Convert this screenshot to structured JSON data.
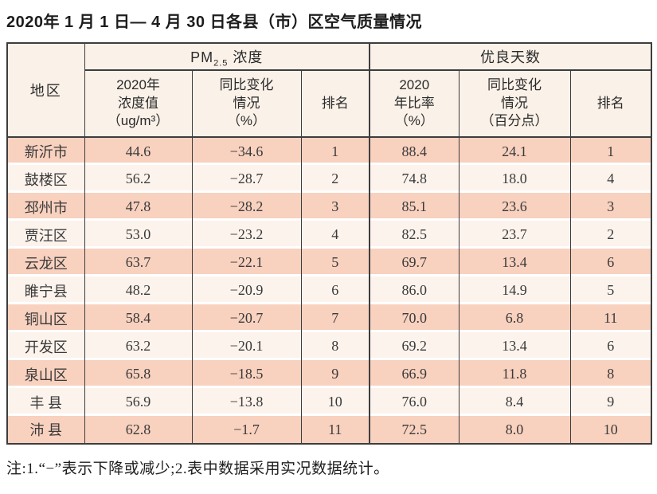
{
  "page": {
    "title": "2020年 1 月 1 日— 4 月 30 日各县（市）区空气质量情况",
    "footnote": "注:1.“−”表示下降或减少;2.表中数据采用实况数据统计。"
  },
  "colors": {
    "salmon": "#f8d1bf",
    "cream": "#fcf3ec",
    "header_bg": "#faf1e8",
    "border": "#3d3d3d",
    "text": "#3a3a3a"
  },
  "table": {
    "header": {
      "region": "地区",
      "pm25_prefix": "PM",
      "pm25_sub": "2.5",
      "pm25_suffix": " 浓度",
      "good_days_group": "优良天数",
      "pm_value": "2020年\n浓度值\n（ug/m³）",
      "pm_change": "同比变化\n情况\n（%）",
      "pm_rank": "排名",
      "days_ratio": "2020\n年比率\n（%）",
      "days_change": "同比变化\n情况\n（百分点）",
      "days_rank": "排名"
    },
    "row_keys": [
      "region",
      "pm_value",
      "pm_change",
      "pm_rank",
      "days_ratio",
      "days_change",
      "days_rank"
    ],
    "rows": [
      {
        "region": "新沂市",
        "pm_value": "44.6",
        "pm_change": "−34.6",
        "pm_rank": "1",
        "days_ratio": "88.4",
        "days_change": "24.1",
        "days_rank": "1"
      },
      {
        "region": "鼓楼区",
        "pm_value": "56.2",
        "pm_change": "−28.7",
        "pm_rank": "2",
        "days_ratio": "74.8",
        "days_change": "18.0",
        "days_rank": "4"
      },
      {
        "region": "邳州市",
        "pm_value": "47.8",
        "pm_change": "−28.2",
        "pm_rank": "3",
        "days_ratio": "85.1",
        "days_change": "23.6",
        "days_rank": "3"
      },
      {
        "region": "贾汪区",
        "pm_value": "53.0",
        "pm_change": "−23.2",
        "pm_rank": "4",
        "days_ratio": "82.5",
        "days_change": "23.7",
        "days_rank": "2"
      },
      {
        "region": "云龙区",
        "pm_value": "63.7",
        "pm_change": "−22.1",
        "pm_rank": "5",
        "days_ratio": "69.7",
        "days_change": "13.4",
        "days_rank": "6"
      },
      {
        "region": "睢宁县",
        "pm_value": "48.2",
        "pm_change": "−20.9",
        "pm_rank": "6",
        "days_ratio": "86.0",
        "days_change": "14.9",
        "days_rank": "5"
      },
      {
        "region": "铜山区",
        "pm_value": "58.4",
        "pm_change": "−20.7",
        "pm_rank": "7",
        "days_ratio": "70.0",
        "days_change": "6.8",
        "days_rank": "11"
      },
      {
        "region": "开发区",
        "pm_value": "63.2",
        "pm_change": "−20.1",
        "pm_rank": "8",
        "days_ratio": "69.2",
        "days_change": "13.4",
        "days_rank": "6"
      },
      {
        "region": "泉山区",
        "pm_value": "65.8",
        "pm_change": "−18.5",
        "pm_rank": "9",
        "days_ratio": "66.9",
        "days_change": "11.8",
        "days_rank": "8"
      },
      {
        "region": "丰 县",
        "pm_value": "56.9",
        "pm_change": "−13.8",
        "pm_rank": "10",
        "days_ratio": "76.0",
        "days_change": "8.4",
        "days_rank": "9"
      },
      {
        "region": "沛 县",
        "pm_value": "62.8",
        "pm_change": "−1.7",
        "pm_rank": "11",
        "days_ratio": "72.5",
        "days_change": "8.0",
        "days_rank": "10"
      }
    ]
  }
}
